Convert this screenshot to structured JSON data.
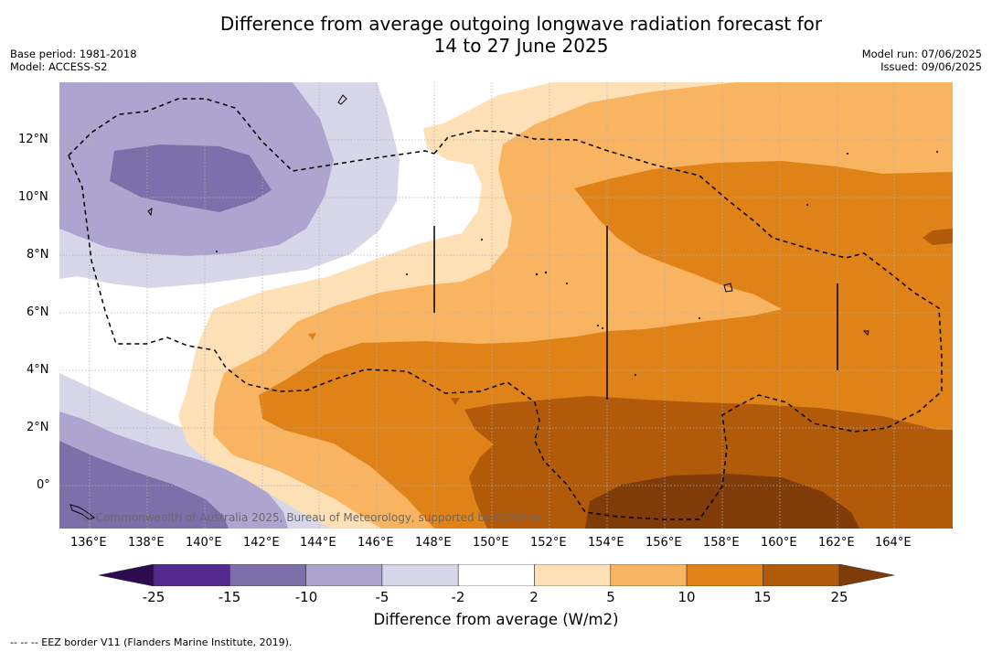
{
  "title": {
    "line1": "Difference from average outgoing longwave radiation forecast for",
    "line2": "14 to 27 June 2025"
  },
  "meta": {
    "base_period": "Base period: 1981-2018",
    "model": "Model: ACCESS-S2",
    "model_run": "Model run: 07/06/2025",
    "issued": "Issued: 09/06/2025"
  },
  "copyright": "© Commonwealth of Australia 2025, Bureau of Meteorology, supported by COSPPac",
  "footnote": "--  --  -- EEZ border V11 (Flanders Marine Institute, 2019).",
  "map_data": {
    "x_ticks": [
      "136°E",
      "138°E",
      "140°E",
      "142°E",
      "144°E",
      "146°E",
      "148°E",
      "150°E",
      "152°E",
      "154°E",
      "156°E",
      "158°E",
      "160°E",
      "162°E",
      "164°E"
    ],
    "y_ticks": [
      "12°N",
      "10°N",
      "8°N",
      "6°N",
      "4°N",
      "2°N",
      "0°"
    ],
    "colorbar": {
      "label": "Difference from average (W/m2)",
      "ticks": [
        "-25",
        "-15",
        "-10",
        "-5",
        "-2",
        "2",
        "5",
        "10",
        "15",
        "25"
      ],
      "bins": [
        {
          "color": "#552a8e"
        },
        {
          "color": "#7d6faa"
        },
        {
          "color": "#ada5cf"
        },
        {
          "color": "#d7d7e9"
        },
        {
          "color": "#ffffff"
        },
        {
          "color": "#fde0b6"
        },
        {
          "color": "#f8b460"
        },
        {
          "color": "#df8218"
        },
        {
          "color": "#b15a0a"
        }
      ],
      "extend_low_color": "#2e0b4f",
      "extend_high_color": "#7f3b08"
    },
    "colors": {
      "purple_1": "#d7d7e9",
      "purple_2": "#ada5cf",
      "purple_3": "#7d6faa",
      "orange_1": "#fde0b6",
      "orange_2": "#f8b460",
      "orange_3": "#df8218",
      "orange_4": "#b15a0a",
      "orange_5": "#7f3b08"
    }
  }
}
